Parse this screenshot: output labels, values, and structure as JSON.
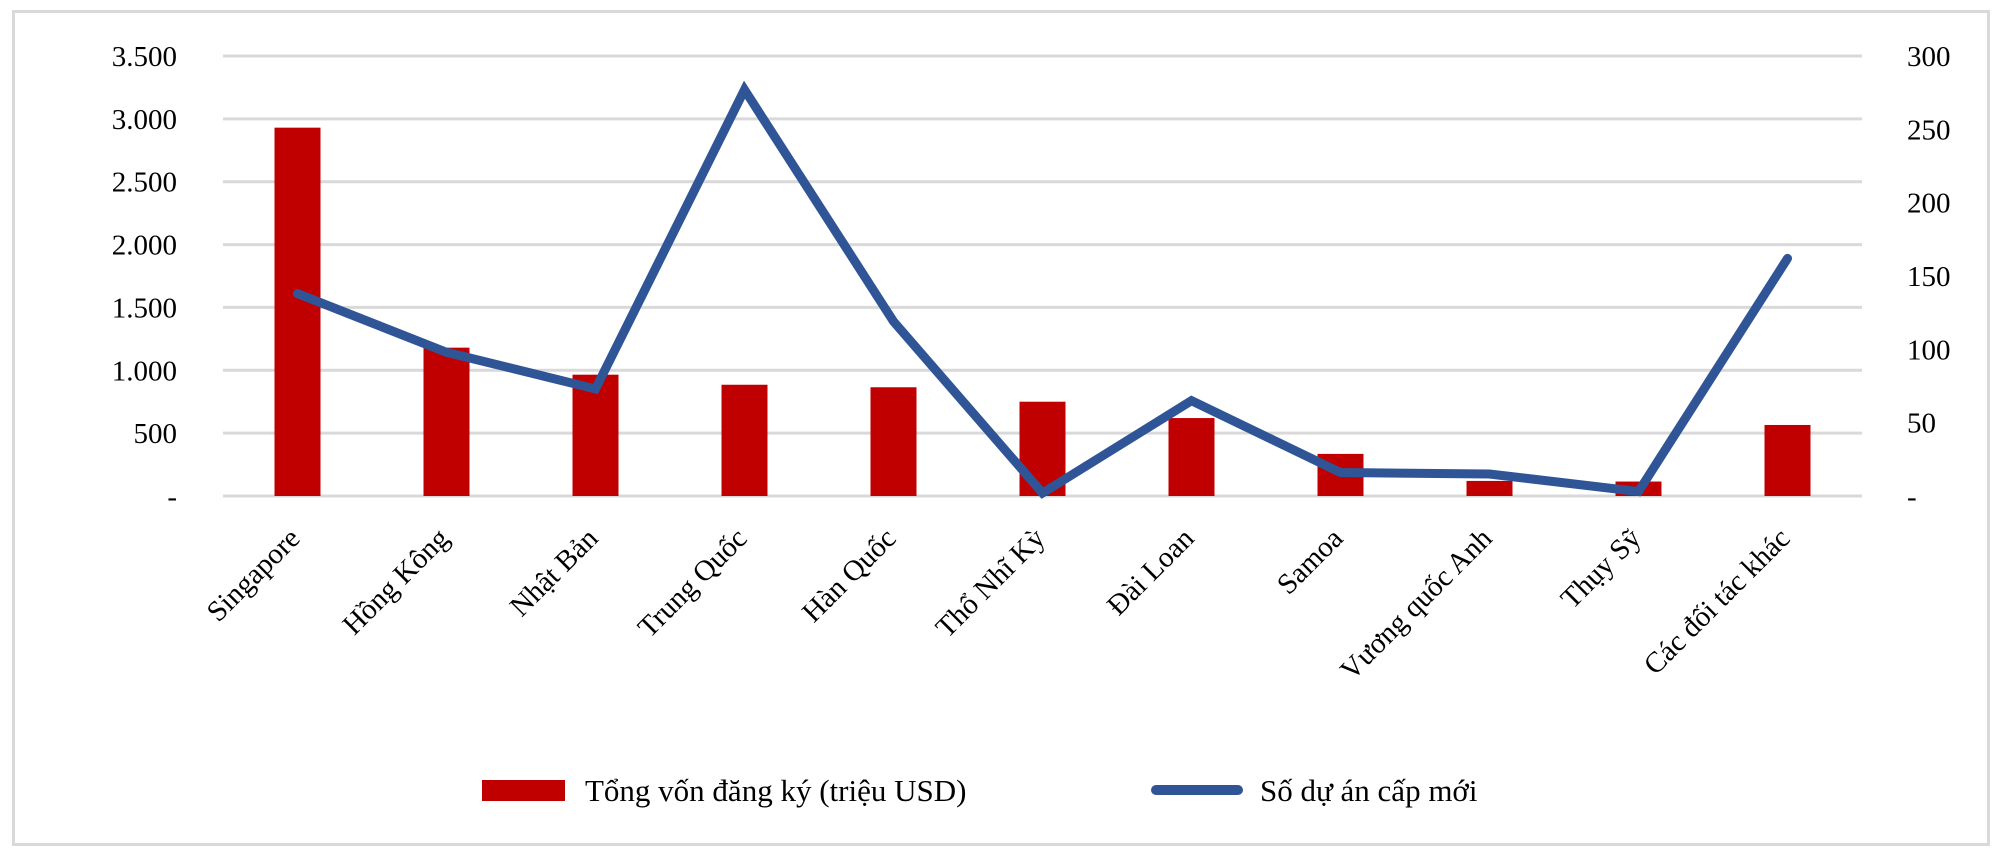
{
  "chart_data": {
    "type": "bar+line",
    "categories": [
      "Singapore",
      "Hồng Kông",
      "Nhật Bản",
      "Trung Quốc",
      "Hàn Quốc",
      "Thổ Nhĩ Kỳ",
      "Đài Loan",
      "Samoa",
      "Vương quốc Anh",
      "Thụy Sỹ",
      "Các đối tác khác"
    ],
    "series": [
      {
        "name": "Tổng vốn đăng ký (triệu  USD)",
        "type": "bar",
        "axis": "left",
        "color": "#c00000",
        "values": [
          2930,
          1180,
          965,
          885,
          865,
          750,
          620,
          335,
          120,
          115,
          565
        ]
      },
      {
        "name": "Số dự án  cấp mới",
        "type": "line",
        "axis": "right",
        "color": "#2f5597",
        "values": [
          138,
          98,
          73,
          277,
          119,
          2,
          65,
          16,
          15,
          3,
          162
        ]
      }
    ],
    "y_left": {
      "range": [
        0,
        3500
      ],
      "ticks": [
        "-",
        "500",
        "1.000",
        "1.500",
        "2.000",
        "2.500",
        "3.000",
        "3.500"
      ]
    },
    "y_right": {
      "range": [
        0,
        300
      ],
      "ticks": [
        "-",
        "50",
        "100",
        "150",
        "200",
        "250",
        "300"
      ]
    },
    "grid": true,
    "legend_position": "bottom"
  }
}
